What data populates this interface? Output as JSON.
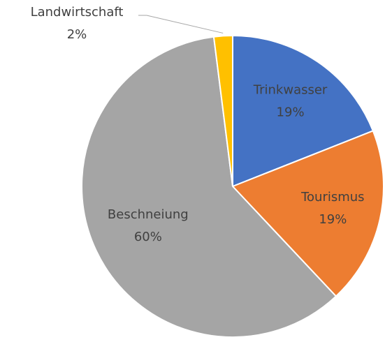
{
  "chart_data": {
    "type": "pie",
    "categories": [
      "Trinkwasser",
      "Tourismus",
      "Beschneiung",
      "Landwirtschaft"
    ],
    "values": [
      19,
      19,
      60,
      2
    ],
    "value_labels": [
      "19%",
      "19%",
      "60%",
      "2%"
    ],
    "colors": [
      "#4472c4",
      "#ed7d31",
      "#a5a5a5",
      "#ffc000"
    ]
  }
}
